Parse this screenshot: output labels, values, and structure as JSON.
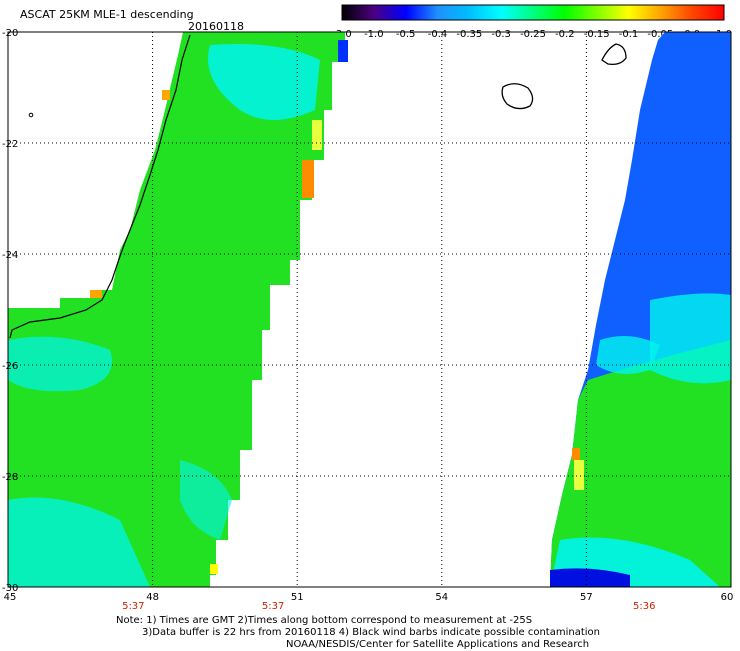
{
  "header": {
    "title": "ASCAT 25KM MLE-1 descending",
    "date": "20160118"
  },
  "colorbar": {
    "tick_labels": [
      "-3.0",
      "-1.0",
      "-0.5",
      "-0.4",
      "-0.35",
      "-0.3",
      "-0.25",
      "-0.2",
      "-0.15",
      "-0.1",
      "-0.05",
      "0.0",
      "1.0"
    ],
    "colors": [
      "#000000",
      "#4b0082",
      "#0000ff",
      "#1e90ff",
      "#00bfff",
      "#00ffff",
      "#00ff7f",
      "#00ff00",
      "#7fff00",
      "#ffff00",
      "#ffa500",
      "#ff4500",
      "#ff0000"
    ]
  },
  "map": {
    "lon_labels": [
      "45",
      "48",
      "51",
      "54",
      "57",
      "60"
    ],
    "lat_labels": [
      "-20",
      "-22",
      "-24",
      "-26",
      "-28",
      "-30"
    ],
    "time_labels": [
      {
        "text": "5:37",
        "lon": 47.6
      },
      {
        "text": "5:37",
        "lon": 50.5
      },
      {
        "text": "5:36",
        "lon": 58.2
      }
    ],
    "lon_range": [
      45,
      60
    ],
    "lat_range": [
      -20,
      -30
    ],
    "swath_colors": {
      "green": "#22e022",
      "cyan": "#00f5ee",
      "blue": "#1060ff"
    }
  },
  "notes": {
    "line1": "Note: 1) Times are GMT 2)Times along bottom correspond to measurement at -25S",
    "line2": "3)Data buffer is 22 hrs from 20160118 4) Black wind barbs indicate possible contamination",
    "line3": "NOAA/NESDIS/Center for Satellite Applications and Research"
  }
}
